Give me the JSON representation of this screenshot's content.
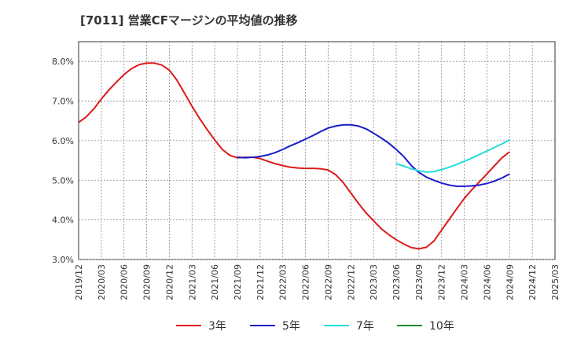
{
  "chart_data": {
    "type": "line",
    "title": "[7011]  営業CFマージンの平均値の推移",
    "xlabel": "",
    "ylabel": "",
    "ylim": [
      3.0,
      8.5
    ],
    "y_ticks": [
      "3.0%",
      "4.0%",
      "5.0%",
      "6.0%",
      "7.0%",
      "8.0%"
    ],
    "y_tick_values": [
      3.0,
      4.0,
      5.0,
      6.0,
      7.0,
      8.0
    ],
    "x_ticks": [
      "2019/12",
      "2020/03",
      "2020/06",
      "2020/09",
      "2020/12",
      "2021/03",
      "2021/06",
      "2021/09",
      "2021/12",
      "2022/03",
      "2022/06",
      "2022/09",
      "2022/12",
      "2023/03",
      "2023/06",
      "2023/09",
      "2023/12",
      "2024/03",
      "2024/06",
      "2024/09",
      "2024/12",
      "2025/03"
    ],
    "x_month_index_start": "2019/12",
    "legend_position": "bottom",
    "grid": true,
    "series": [
      {
        "name": "3年",
        "color": "#dd1a1a",
        "points": [
          [
            "2019/12",
            6.46
          ],
          [
            "2020/01",
            6.6
          ],
          [
            "2020/02",
            6.8
          ],
          [
            "2020/03",
            7.05
          ],
          [
            "2020/04",
            7.28
          ],
          [
            "2020/05",
            7.48
          ],
          [
            "2020/06",
            7.67
          ],
          [
            "2020/07",
            7.82
          ],
          [
            "2020/08",
            7.92
          ],
          [
            "2020/09",
            7.96
          ],
          [
            "2020/10",
            7.96
          ],
          [
            "2020/11",
            7.91
          ],
          [
            "2020/12",
            7.78
          ],
          [
            "2021/01",
            7.53
          ],
          [
            "2021/02",
            7.2
          ],
          [
            "2021/03",
            6.87
          ],
          [
            "2021/04",
            6.56
          ],
          [
            "2021/05",
            6.28
          ],
          [
            "2021/06",
            6.02
          ],
          [
            "2021/07",
            5.78
          ],
          [
            "2021/08",
            5.63
          ],
          [
            "2021/09",
            5.57
          ],
          [
            "2021/10",
            5.58
          ],
          [
            "2021/11",
            5.58
          ],
          [
            "2021/12",
            5.55
          ],
          [
            "2022/01",
            5.48
          ],
          [
            "2022/02",
            5.42
          ],
          [
            "2022/03",
            5.37
          ],
          [
            "2022/04",
            5.33
          ],
          [
            "2022/05",
            5.31
          ],
          [
            "2022/06",
            5.3
          ],
          [
            "2022/07",
            5.3
          ],
          [
            "2022/08",
            5.29
          ],
          [
            "2022/09",
            5.26
          ],
          [
            "2022/10",
            5.14
          ],
          [
            "2022/11",
            4.94
          ],
          [
            "2022/12",
            4.68
          ],
          [
            "2023/01",
            4.42
          ],
          [
            "2023/02",
            4.18
          ],
          [
            "2023/03",
            3.98
          ],
          [
            "2023/04",
            3.78
          ],
          [
            "2023/05",
            3.63
          ],
          [
            "2023/06",
            3.5
          ],
          [
            "2023/07",
            3.39
          ],
          [
            "2023/08",
            3.3
          ],
          [
            "2023/09",
            3.27
          ],
          [
            "2023/10",
            3.31
          ],
          [
            "2023/11",
            3.47
          ],
          [
            "2023/12",
            3.74
          ],
          [
            "2024/01",
            4.01
          ],
          [
            "2024/02",
            4.28
          ],
          [
            "2024/03",
            4.54
          ],
          [
            "2024/04",
            4.76
          ],
          [
            "2024/05",
            4.96
          ],
          [
            "2024/06",
            5.16
          ],
          [
            "2024/07",
            5.37
          ],
          [
            "2024/08",
            5.57
          ],
          [
            "2024/09",
            5.72
          ]
        ]
      },
      {
        "name": "5年",
        "color": "#1a1acc",
        "points": [
          [
            "2021/09",
            5.58
          ],
          [
            "2021/10",
            5.57
          ],
          [
            "2021/11",
            5.58
          ],
          [
            "2021/12",
            5.6
          ],
          [
            "2022/01",
            5.64
          ],
          [
            "2022/02",
            5.7
          ],
          [
            "2022/03",
            5.78
          ],
          [
            "2022/04",
            5.87
          ],
          [
            "2022/05",
            5.95
          ],
          [
            "2022/06",
            6.04
          ],
          [
            "2022/07",
            6.13
          ],
          [
            "2022/08",
            6.23
          ],
          [
            "2022/09",
            6.32
          ],
          [
            "2022/10",
            6.37
          ],
          [
            "2022/11",
            6.4
          ],
          [
            "2022/12",
            6.4
          ],
          [
            "2023/01",
            6.37
          ],
          [
            "2023/02",
            6.3
          ],
          [
            "2023/03",
            6.19
          ],
          [
            "2023/04",
            6.07
          ],
          [
            "2023/05",
            5.94
          ],
          [
            "2023/06",
            5.78
          ],
          [
            "2023/07",
            5.6
          ],
          [
            "2023/08",
            5.37
          ],
          [
            "2023/09",
            5.2
          ],
          [
            "2023/10",
            5.08
          ],
          [
            "2023/11",
            5.0
          ],
          [
            "2023/12",
            4.93
          ],
          [
            "2024/01",
            4.88
          ],
          [
            "2024/02",
            4.85
          ],
          [
            "2024/03",
            4.85
          ],
          [
            "2024/04",
            4.86
          ],
          [
            "2024/05",
            4.88
          ],
          [
            "2024/06",
            4.92
          ],
          [
            "2024/07",
            4.98
          ],
          [
            "2024/08",
            5.06
          ],
          [
            "2024/09",
            5.16
          ]
        ]
      },
      {
        "name": "7年",
        "color": "#22dddd",
        "points": [
          [
            "2023/06",
            5.42
          ],
          [
            "2023/07",
            5.36
          ],
          [
            "2023/08",
            5.29
          ],
          [
            "2023/09",
            5.24
          ],
          [
            "2023/10",
            5.21
          ],
          [
            "2023/11",
            5.22
          ],
          [
            "2023/12",
            5.27
          ],
          [
            "2024/01",
            5.33
          ],
          [
            "2024/02",
            5.4
          ],
          [
            "2024/03",
            5.48
          ],
          [
            "2024/04",
            5.56
          ],
          [
            "2024/05",
            5.65
          ],
          [
            "2024/06",
            5.74
          ],
          [
            "2024/07",
            5.83
          ],
          [
            "2024/08",
            5.92
          ],
          [
            "2024/09",
            6.02
          ]
        ]
      },
      {
        "name": "10年",
        "color": "#228822",
        "points": []
      }
    ]
  }
}
